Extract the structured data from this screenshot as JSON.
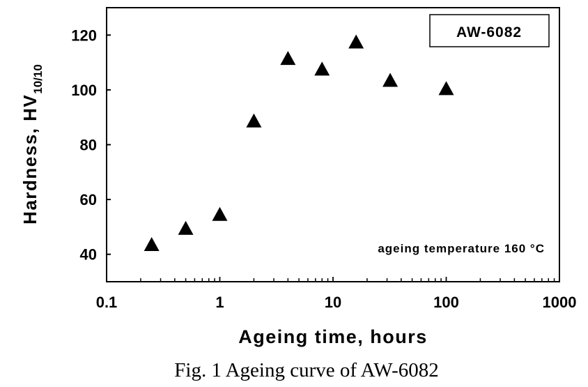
{
  "chart_data": {
    "type": "scatter",
    "title": "",
    "xlabel": "Ageing time, hours",
    "ylabel_main": "Hardness, HV",
    "ylabel_sub": "10/10",
    "xscale": "log",
    "xlim": [
      0.1,
      1000
    ],
    "ylim": [
      30,
      130
    ],
    "xticks": [
      0.1,
      1,
      10,
      100,
      1000
    ],
    "xtick_labels": [
      "0.1",
      "1",
      "10",
      "100",
      "1000"
    ],
    "yticks": [
      40,
      60,
      80,
      100,
      120
    ],
    "ytick_labels": [
      "40",
      "60",
      "80",
      "100",
      "120"
    ],
    "grid": false,
    "marker": "triangle",
    "series": [
      {
        "name": "AW-6082",
        "x": [
          0.25,
          0.5,
          1,
          2,
          4,
          8,
          16,
          32,
          100
        ],
        "y": [
          43.5,
          49.4,
          54.5,
          88.6,
          111.4,
          107.5,
          117.4,
          103.4,
          100.4
        ]
      }
    ],
    "legend_label": "AW-6082",
    "legend_placement": "top-right",
    "annotation": "ageing temperature 160 °C"
  },
  "caption": "Fig. 1  Ageing curve of AW-6082"
}
